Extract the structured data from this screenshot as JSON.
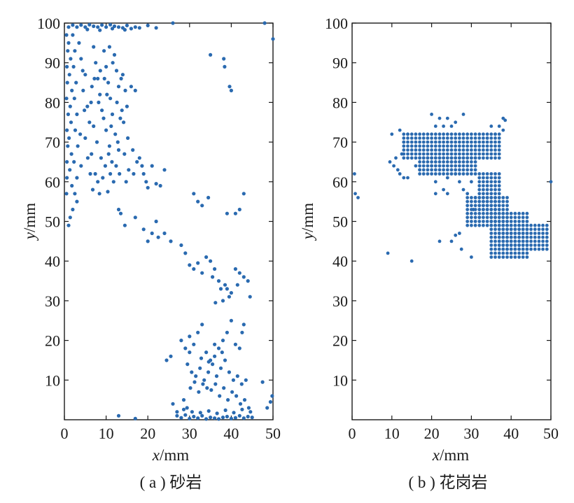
{
  "figure": {
    "colors": {
      "points": "#2a6ab0",
      "axes": "#1a1a1a"
    },
    "marker_radius_data_note": "filled circle markers"
  },
  "chart_data": [
    {
      "type": "scatter",
      "id": "a",
      "caption": "( a ) 砂岩",
      "xlabel": {
        "var": "x",
        "unit": "/mm"
      },
      "ylabel": {
        "var": "y",
        "unit": "/mm"
      },
      "xlim": [
        0,
        50
      ],
      "ylim": [
        0,
        100
      ],
      "xticks": [
        0,
        10,
        20,
        30,
        40,
        50
      ],
      "yticks": [
        10,
        20,
        30,
        40,
        50,
        60,
        70,
        80,
        90,
        100
      ],
      "grid": false,
      "points": [
        [
          1,
          99
        ],
        [
          2,
          99.5
        ],
        [
          3,
          99
        ],
        [
          4,
          99.5
        ],
        [
          5,
          99
        ],
        [
          6,
          99.6
        ],
        [
          7,
          99.2
        ],
        [
          8,
          99
        ],
        [
          9,
          99.5
        ],
        [
          10,
          99
        ],
        [
          11,
          99.6
        ],
        [
          12,
          99.2
        ],
        [
          13,
          99
        ],
        [
          14,
          98.8
        ],
        [
          15,
          99.4
        ],
        [
          16,
          98.6
        ],
        [
          5.5,
          98.4
        ],
        [
          8.5,
          98.2
        ],
        [
          11.5,
          98.6
        ],
        [
          14.5,
          98.3
        ],
        [
          17,
          99
        ],
        [
          18,
          98.8
        ],
        [
          20,
          99.4
        ],
        [
          22,
          98.8
        ],
        [
          26,
          100
        ],
        [
          48,
          100
        ],
        [
          50,
          96
        ],
        [
          0.5,
          97
        ],
        [
          1,
          95
        ],
        [
          0.8,
          93
        ],
        [
          1.5,
          91
        ],
        [
          0.6,
          89
        ],
        [
          1.2,
          87
        ],
        [
          0.7,
          85
        ],
        [
          1.8,
          83
        ],
        [
          0.5,
          81
        ],
        [
          1.4,
          79
        ],
        [
          0.9,
          77
        ],
        [
          1.6,
          75
        ],
        [
          0.6,
          73
        ],
        [
          1.1,
          71
        ],
        [
          0.8,
          69
        ],
        [
          1.7,
          67
        ],
        [
          0.6,
          65
        ],
        [
          1.3,
          63
        ],
        [
          2,
          97
        ],
        [
          2.5,
          93
        ],
        [
          2.2,
          89
        ],
        [
          2.8,
          85
        ],
        [
          2.4,
          81
        ],
        [
          3,
          77
        ],
        [
          2.6,
          73
        ],
        [
          3.2,
          69
        ],
        [
          2.3,
          65
        ],
        [
          3,
          61
        ],
        [
          1.8,
          59
        ],
        [
          2.5,
          57
        ],
        [
          3,
          55
        ],
        [
          2,
          53
        ],
        [
          1.4,
          51
        ],
        [
          1,
          49
        ],
        [
          0.6,
          61
        ],
        [
          0.5,
          57
        ],
        [
          3.5,
          95
        ],
        [
          4,
          91
        ],
        [
          5,
          87
        ],
        [
          4.5,
          83
        ],
        [
          5.5,
          79
        ],
        [
          6,
          75
        ],
        [
          5,
          71
        ],
        [
          6.5,
          67
        ],
        [
          4,
          64
        ],
        [
          7,
          94
        ],
        [
          7.5,
          90
        ],
        [
          8,
          86
        ],
        [
          8.5,
          82
        ],
        [
          9,
          78
        ],
        [
          7,
          74
        ],
        [
          7.8,
          70
        ],
        [
          8.8,
          66
        ],
        [
          6.2,
          62
        ],
        [
          6.8,
          58
        ],
        [
          9.5,
          93
        ],
        [
          10,
          89
        ],
        [
          10.5,
          85
        ],
        [
          11,
          81
        ],
        [
          11.5,
          77
        ],
        [
          10,
          73
        ],
        [
          10.8,
          69
        ],
        [
          11.4,
          65
        ],
        [
          9.2,
          61
        ],
        [
          8.4,
          57
        ],
        [
          12,
          92
        ],
        [
          12.5,
          88
        ],
        [
          13,
          84
        ],
        [
          12.6,
          80
        ],
        [
          13.4,
          76
        ],
        [
          12.2,
          72
        ],
        [
          13,
          68
        ],
        [
          12.4,
          64
        ],
        [
          11.8,
          60
        ],
        [
          10.4,
          57.5
        ],
        [
          14,
          87
        ],
        [
          14.6,
          83
        ],
        [
          15,
          79
        ],
        [
          14.2,
          75
        ],
        [
          15.2,
          71
        ],
        [
          14.4,
          67
        ],
        [
          15.4,
          63
        ],
        [
          14.8,
          60
        ],
        [
          16,
          84
        ],
        [
          17,
          83
        ],
        [
          16.4,
          68
        ],
        [
          17.4,
          65
        ],
        [
          16.6,
          62
        ],
        [
          18,
          66
        ],
        [
          18.6,
          64
        ],
        [
          19,
          62
        ],
        [
          19.6,
          60
        ],
        [
          20,
          58.5
        ],
        [
          21,
          64
        ],
        [
          22,
          59.5
        ],
        [
          24,
          63
        ],
        [
          23,
          59
        ],
        [
          4.4,
          88
        ],
        [
          6.6,
          84
        ],
        [
          9.6,
          86
        ],
        [
          10.2,
          82
        ],
        [
          8.2,
          80
        ],
        [
          9.4,
          76
        ],
        [
          11.2,
          74
        ],
        [
          12.8,
          70
        ],
        [
          10.6,
          67
        ],
        [
          9.8,
          64
        ],
        [
          7.4,
          62
        ],
        [
          5.6,
          66
        ],
        [
          3.8,
          72
        ],
        [
          4.8,
          78
        ],
        [
          6.4,
          80
        ],
        [
          7.2,
          86
        ],
        [
          8.6,
          88
        ],
        [
          11.6,
          90
        ],
        [
          10.8,
          94
        ],
        [
          13.6,
          86
        ],
        [
          13.8,
          78
        ],
        [
          13.2,
          62
        ],
        [
          11,
          62
        ],
        [
          8,
          60
        ],
        [
          13,
          53
        ],
        [
          13.5,
          52
        ],
        [
          14.5,
          49
        ],
        [
          17,
          51
        ],
        [
          19,
          48
        ],
        [
          20,
          45
        ],
        [
          21,
          47
        ],
        [
          22,
          50
        ],
        [
          22.5,
          46
        ],
        [
          24,
          47
        ],
        [
          25.5,
          45
        ],
        [
          28,
          44
        ],
        [
          29,
          42
        ],
        [
          30,
          39
        ],
        [
          31,
          38
        ],
        [
          32,
          39.5
        ],
        [
          33,
          37
        ],
        [
          34,
          41
        ],
        [
          35,
          40
        ],
        [
          35.5,
          36
        ],
        [
          36,
          38
        ],
        [
          37,
          35
        ],
        [
          37.5,
          33
        ],
        [
          38,
          30
        ],
        [
          38.5,
          34
        ],
        [
          39,
          33
        ],
        [
          39.5,
          31
        ],
        [
          40,
          32
        ],
        [
          41,
          38
        ],
        [
          42,
          37
        ],
        [
          43,
          36
        ],
        [
          44,
          35
        ],
        [
          44.5,
          31
        ],
        [
          36.2,
          29.5
        ],
        [
          41.5,
          34
        ],
        [
          31,
          57
        ],
        [
          32,
          55
        ],
        [
          33,
          54
        ],
        [
          34.5,
          56
        ],
        [
          39,
          52
        ],
        [
          41,
          52
        ],
        [
          43,
          57
        ],
        [
          42,
          53
        ],
        [
          35,
          92
        ],
        [
          38.2,
          91
        ],
        [
          38.4,
          89
        ],
        [
          39.6,
          84
        ],
        [
          40,
          83
        ],
        [
          24.5,
          15
        ],
        [
          25.5,
          16
        ],
        [
          28,
          20
        ],
        [
          29,
          18
        ],
        [
          30,
          21
        ],
        [
          31,
          19
        ],
        [
          32,
          22
        ],
        [
          33,
          24
        ],
        [
          34,
          17
        ],
        [
          35,
          15
        ],
        [
          36,
          19
        ],
        [
          37,
          18
        ],
        [
          38,
          20
        ],
        [
          39,
          22
        ],
        [
          40,
          25
        ],
        [
          41,
          19
        ],
        [
          42,
          18
        ],
        [
          42.6,
          22
        ],
        [
          43,
          24
        ],
        [
          29.5,
          14
        ],
        [
          30.5,
          12
        ],
        [
          31.5,
          11
        ],
        [
          32.5,
          13
        ],
        [
          33.5,
          10
        ],
        [
          34.5,
          12
        ],
        [
          35.5,
          14
        ],
        [
          36.5,
          11
        ],
        [
          37.5,
          13
        ],
        [
          38.5,
          15
        ],
        [
          39.5,
          12
        ],
        [
          40.5,
          10
        ],
        [
          41.5,
          11
        ],
        [
          42.5,
          9
        ],
        [
          43.5,
          10
        ],
        [
          30.2,
          8
        ],
        [
          31.2,
          9.5
        ],
        [
          32.2,
          7
        ],
        [
          33.2,
          9
        ],
        [
          34.2,
          8
        ],
        [
          35.2,
          7.5
        ],
        [
          36.2,
          9
        ],
        [
          37.2,
          6
        ],
        [
          38.2,
          8
        ],
        [
          39.2,
          5
        ],
        [
          40.2,
          7
        ],
        [
          41.2,
          6
        ],
        [
          42.2,
          4
        ],
        [
          43.2,
          5
        ],
        [
          44.2,
          3
        ],
        [
          47.5,
          9.5
        ],
        [
          49.8,
          6
        ],
        [
          49.4,
          4.5
        ],
        [
          48.6,
          3
        ],
        [
          30,
          17
        ],
        [
          32.8,
          15.5
        ],
        [
          34.6,
          14.6
        ],
        [
          36,
          16
        ],
        [
          37.8,
          17
        ],
        [
          28.6,
          5
        ],
        [
          29.4,
          3
        ],
        [
          27,
          1
        ],
        [
          28,
          0.5
        ],
        [
          29,
          1.2
        ],
        [
          30,
          0.3
        ],
        [
          31,
          0.8
        ],
        [
          32,
          0.4
        ],
        [
          33,
          1
        ],
        [
          34,
          0.2
        ],
        [
          35,
          0.6
        ],
        [
          36,
          0.4
        ],
        [
          37,
          0.2
        ],
        [
          38,
          0.6
        ],
        [
          39,
          0.8
        ],
        [
          40,
          0.3
        ],
        [
          41,
          0.5
        ],
        [
          42,
          1
        ],
        [
          43,
          0.4
        ],
        [
          44,
          0.8
        ],
        [
          45,
          0.6
        ],
        [
          26,
          4
        ],
        [
          27,
          2
        ],
        [
          28.6,
          2.6
        ],
        [
          30.6,
          2
        ],
        [
          32.6,
          1.8
        ],
        [
          34.6,
          2.2
        ],
        [
          36.6,
          1.6
        ],
        [
          38.6,
          2.4
        ],
        [
          40.6,
          1.8
        ],
        [
          42.6,
          2.6
        ],
        [
          44.6,
          2
        ],
        [
          13,
          1
        ],
        [
          17,
          0.3
        ]
      ]
    },
    {
      "type": "scatter",
      "id": "b",
      "caption": "( b ) 花岗岩",
      "xlabel": {
        "var": "x",
        "unit": "/mm"
      },
      "ylabel": {
        "var": "y",
        "unit": "/mm"
      },
      "xlim": [
        0,
        50
      ],
      "ylim": [
        0,
        100
      ],
      "xticks": [
        0,
        10,
        20,
        30,
        40,
        50
      ],
      "yticks": [
        10,
        20,
        30,
        40,
        50,
        60,
        70,
        80,
        90,
        100
      ],
      "grid": false,
      "points": [
        [
          0.6,
          62
        ],
        [
          0.8,
          57
        ],
        [
          1.5,
          56
        ],
        [
          9,
          42
        ],
        [
          15,
          40
        ],
        [
          27.5,
          43
        ],
        [
          30,
          41
        ],
        [
          50,
          60
        ],
        [
          20,
          77
        ],
        [
          22,
          76
        ],
        [
          24,
          76
        ],
        [
          26,
          75
        ],
        [
          28,
          77
        ],
        [
          38,
          76
        ],
        [
          38.5,
          75.5
        ],
        [
          37,
          74
        ],
        [
          35,
          74
        ],
        [
          36,
          72
        ],
        [
          38,
          73
        ],
        [
          34,
          71
        ],
        [
          25,
          74
        ],
        [
          23,
          74
        ],
        [
          21,
          74
        ],
        [
          10,
          72
        ],
        [
          12,
          73
        ],
        [
          13,
          70
        ],
        [
          14,
          72
        ],
        [
          9.5,
          65
        ],
        [
          10.5,
          64
        ],
        [
          11,
          66
        ],
        [
          11.5,
          63
        ],
        [
          12,
          62
        ],
        [
          13,
          61
        ],
        [
          14,
          61
        ],
        [
          12.5,
          67
        ],
        [
          16,
          64
        ],
        [
          17,
          63
        ],
        [
          25,
          65
        ],
        [
          26,
          62
        ],
        [
          27,
          60
        ],
        [
          28,
          58
        ],
        [
          23,
          58
        ],
        [
          21,
          60
        ],
        [
          24,
          61
        ],
        [
          20,
          64
        ],
        [
          30,
          60
        ],
        [
          29,
          57
        ],
        [
          31,
          56
        ],
        [
          30.5,
          53
        ],
        [
          32,
          51
        ],
        [
          24,
          57
        ],
        [
          21,
          57
        ],
        [
          22,
          45
        ],
        [
          25,
          45
        ],
        [
          26,
          46.5
        ],
        [
          27,
          47
        ]
      ],
      "grid_clusters": [
        {
          "x_from": 13,
          "x_to": 37,
          "y_from": 66,
          "y_to": 72,
          "step": 1
        },
        {
          "x_from": 17,
          "x_to": 31,
          "y_from": 62,
          "y_to": 66,
          "step": 1
        },
        {
          "x_from": 32,
          "x_to": 37,
          "y_from": 53,
          "y_to": 62,
          "step": 1
        },
        {
          "x_from": 29,
          "x_to": 39,
          "y_from": 49,
          "y_to": 56,
          "step": 1
        },
        {
          "x_from": 37,
          "x_to": 49,
          "y_from": 43,
          "y_to": 49,
          "step": 1
        },
        {
          "x_from": 35,
          "x_to": 44,
          "y_from": 41,
          "y_to": 52,
          "step": 1
        }
      ]
    }
  ]
}
